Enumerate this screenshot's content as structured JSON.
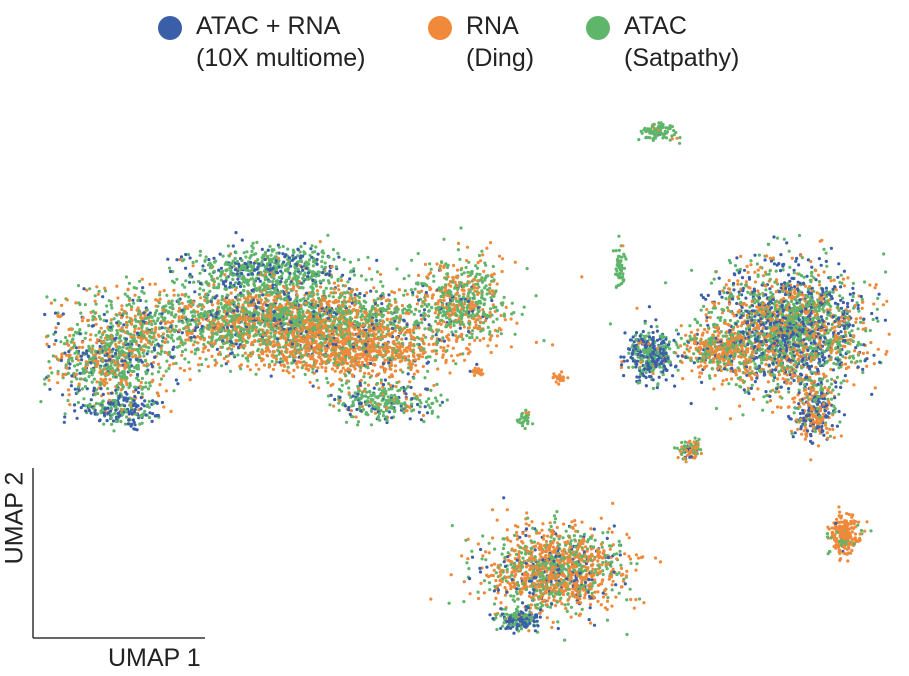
{
  "chart_data": {
    "type": "scatter",
    "title": "",
    "xlabel": "UMAP 1",
    "ylabel": "UMAP 2",
    "grid": false,
    "legend_position": "top",
    "series": [
      {
        "name": "ATAC + RNA",
        "name_line2": "(10X multiome)",
        "color": "#3a5ea8"
      },
      {
        "name": "RNA",
        "name_line2": "(Ding)",
        "color": "#f0893a"
      },
      {
        "name": "ATAC",
        "name_line2": "(Satpathy)",
        "color": "#5fb56a"
      }
    ],
    "point_cloud_note_visible": false
  }
}
